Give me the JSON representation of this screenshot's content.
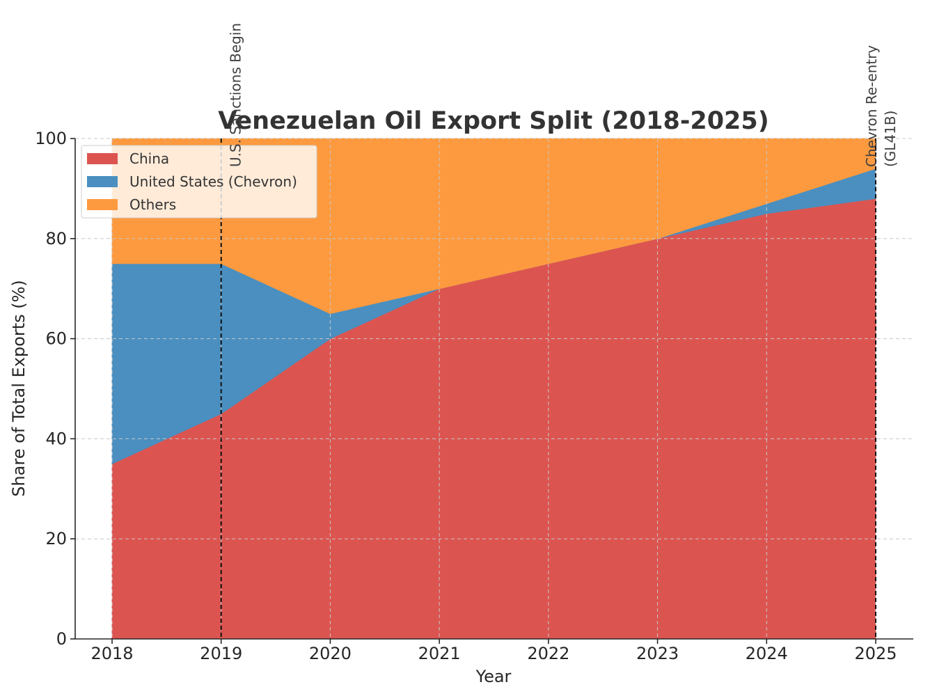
{
  "chart_data": {
    "type": "area",
    "stacked": true,
    "title": "Venezuelan Oil Export Split (2018-2025)",
    "xlabel": "Year",
    "ylabel": "Share of Total Exports (%)",
    "x": [
      2018,
      2019,
      2020,
      2021,
      2022,
      2023,
      2024,
      2025
    ],
    "x_tick_labels": [
      "2018",
      "2019",
      "2020",
      "2021",
      "2022",
      "2023",
      "2024",
      "2025"
    ],
    "ylim": [
      0,
      100
    ],
    "y_ticks": [
      0,
      20,
      40,
      60,
      80,
      100
    ],
    "y_tick_labels": [
      "0",
      "20",
      "40",
      "60",
      "80",
      "100"
    ],
    "grid": true,
    "legend_position": "top-left",
    "series": [
      {
        "name": "China",
        "color": "#dc5450",
        "values": [
          35,
          45,
          60,
          70,
          75,
          80,
          85,
          88
        ]
      },
      {
        "name": "United States (Chevron)",
        "color": "#4a8fc0",
        "values": [
          40,
          30,
          5,
          0,
          0,
          0,
          2,
          6
        ]
      },
      {
        "name": "Others",
        "color": "#fd9a3f",
        "values": [
          25,
          25,
          35,
          30,
          25,
          20,
          13,
          6
        ]
      }
    ],
    "annotations": [
      {
        "x": 2019,
        "lines": [
          "U.S. Sanctions Begin"
        ]
      },
      {
        "x": 2025,
        "lines": [
          "Chevron Re-entry",
          "(GL41B)"
        ]
      }
    ]
  }
}
